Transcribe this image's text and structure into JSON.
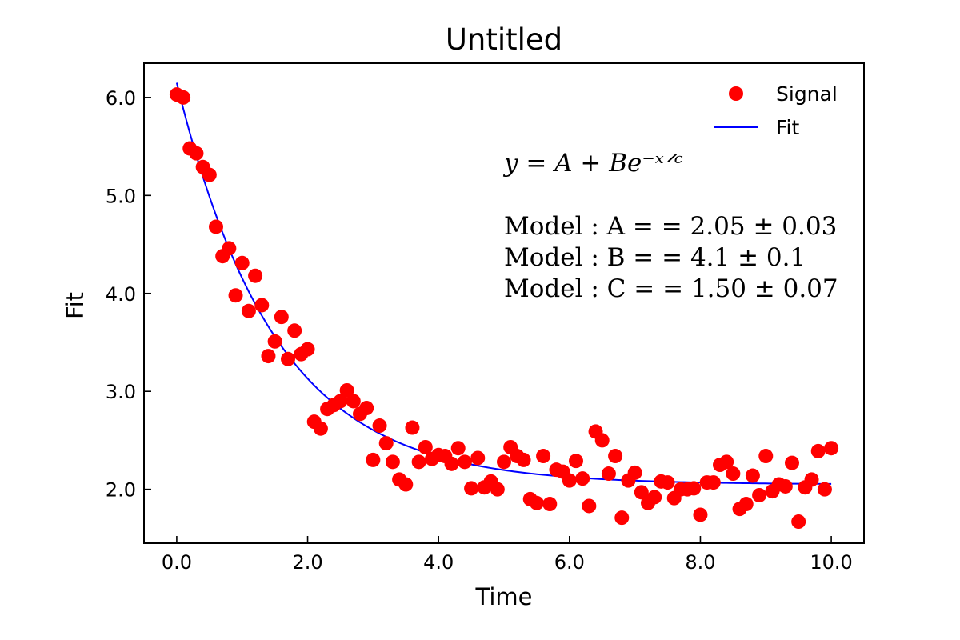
{
  "chart_data": {
    "type": "scatter",
    "title": "Untitled",
    "xlabel": "Time",
    "ylabel": "Fit",
    "xlim": [
      -0.5,
      10.5
    ],
    "ylim": [
      1.45,
      6.35
    ],
    "x_ticks": [
      0,
      2,
      4,
      6,
      8,
      10
    ],
    "x_tick_labels": [
      "0.0",
      "2.0",
      "4.0",
      "6.0",
      "8.0",
      "10.0"
    ],
    "y_ticks": [
      2,
      3,
      4,
      5,
      6
    ],
    "y_tick_labels": [
      "2.0",
      "3.0",
      "4.0",
      "5.0",
      "6.0"
    ],
    "grid": false,
    "legend_position": "top-right",
    "legend": [
      {
        "label": "Signal",
        "marker": "circle",
        "color": "#ff0000"
      },
      {
        "label": "Fit",
        "marker": "line",
        "color": "#0000ff"
      }
    ],
    "annotations": {
      "equation": "y = A + Be⁻ˣᐟᶜ",
      "params": [
        "Model : A = = 2.05 ± 0.03",
        "Model : B = = 4.1 ± 0.1",
        "Model : C = = 1.50 ± 0.07"
      ]
    },
    "series": [
      {
        "name": "Signal",
        "kind": "scatter",
        "color": "#ff0000",
        "x": [
          0.0,
          0.1,
          0.2,
          0.3,
          0.4,
          0.5,
          0.6,
          0.7,
          0.8,
          0.9,
          1.0,
          1.1,
          1.2,
          1.3,
          1.4,
          1.5,
          1.6,
          1.7,
          1.8,
          1.9,
          2.0,
          2.1,
          2.2,
          2.3,
          2.4,
          2.5,
          2.6,
          2.7,
          2.8,
          2.9,
          3.0,
          3.1,
          3.2,
          3.3,
          3.4,
          3.5,
          3.6,
          3.7,
          3.8,
          3.9,
          4.0,
          4.1,
          4.2,
          4.3,
          4.4,
          4.5,
          4.6,
          4.7,
          4.8,
          4.9,
          5.0,
          5.1,
          5.2,
          5.3,
          5.4,
          5.5,
          5.6,
          5.7,
          5.8,
          5.9,
          6.0,
          6.1,
          6.2,
          6.3,
          6.4,
          6.5,
          6.6,
          6.7,
          6.8,
          6.9,
          7.0,
          7.1,
          7.2,
          7.3,
          7.4,
          7.5,
          7.6,
          7.7,
          7.8,
          7.9,
          8.0,
          8.1,
          8.2,
          8.3,
          8.4,
          8.5,
          8.6,
          8.7,
          8.8,
          8.9,
          9.0,
          9.1,
          9.2,
          9.3,
          9.4,
          9.5,
          9.6,
          9.7,
          9.8,
          9.9,
          10.0
        ],
        "y": [
          6.03,
          6.0,
          5.48,
          5.43,
          5.29,
          5.21,
          4.68,
          4.38,
          4.46,
          3.98,
          4.31,
          3.82,
          4.18,
          3.88,
          3.36,
          3.51,
          3.76,
          3.33,
          3.62,
          3.38,
          3.43,
          2.69,
          2.62,
          2.82,
          2.86,
          2.9,
          3.01,
          2.9,
          2.77,
          2.83,
          2.3,
          2.65,
          2.47,
          2.28,
          2.1,
          2.05,
          2.63,
          2.28,
          2.43,
          2.31,
          2.35,
          2.34,
          2.26,
          2.42,
          2.28,
          2.01,
          2.32,
          2.02,
          2.08,
          2.0,
          2.28,
          2.43,
          2.34,
          2.3,
          1.9,
          1.86,
          2.34,
          1.85,
          2.2,
          2.18,
          2.09,
          2.29,
          2.11,
          1.83,
          2.59,
          2.5,
          2.16,
          2.34,
          1.71,
          2.09,
          2.17,
          1.97,
          1.86,
          1.92,
          2.08,
          2.07,
          1.91,
          2.0,
          2.0,
          2.01,
          1.74,
          2.07,
          2.07,
          2.25,
          2.28,
          2.16,
          1.8,
          1.85,
          2.14,
          1.94,
          2.34,
          1.98,
          2.05,
          2.03,
          2.27,
          1.67,
          2.02,
          2.1,
          2.39,
          2.0,
          2.42
        ]
      },
      {
        "name": "Fit",
        "kind": "line",
        "color": "#0000ff",
        "model": {
          "A": 2.05,
          "B": 4.1,
          "C": 1.5
        },
        "x_range": [
          0,
          10
        ]
      }
    ]
  }
}
